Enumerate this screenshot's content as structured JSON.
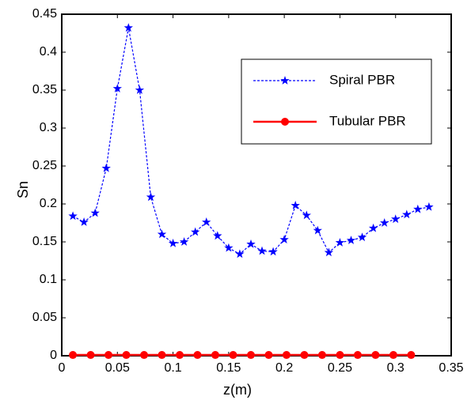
{
  "chart_data": {
    "type": "line",
    "x_label": "z(m)",
    "y_label": "Sn",
    "xlim": [
      0,
      0.35
    ],
    "ylim": [
      0,
      0.45
    ],
    "xticks": [
      0,
      0.05,
      0.1,
      0.15,
      0.2,
      0.25,
      0.3,
      0.35
    ],
    "yticks": [
      0,
      0.05,
      0.1,
      0.15,
      0.2,
      0.25,
      0.3,
      0.35,
      0.4,
      0.45
    ],
    "grid": false,
    "legend": "upper right",
    "series": [
      {
        "name": "Spiral PBR",
        "color": "#0000ff",
        "marker": "star",
        "line_style": "dashed",
        "x": [
          0.01,
          0.02,
          0.03,
          0.04,
          0.05,
          0.06,
          0.07,
          0.08,
          0.09,
          0.1,
          0.11,
          0.12,
          0.13,
          0.14,
          0.15,
          0.16,
          0.17,
          0.18,
          0.19,
          0.2,
          0.21,
          0.22,
          0.23,
          0.24,
          0.25,
          0.26,
          0.27,
          0.28,
          0.29,
          0.3,
          0.31,
          0.32,
          0.33
        ],
        "values": [
          0.184,
          0.176,
          0.188,
          0.247,
          0.352,
          0.432,
          0.35,
          0.209,
          0.16,
          0.148,
          0.15,
          0.163,
          0.176,
          0.158,
          0.142,
          0.134,
          0.147,
          0.138,
          0.137,
          0.153,
          0.198,
          0.185,
          0.165,
          0.136,
          0.149,
          0.152,
          0.156,
          0.168,
          0.175,
          0.18,
          0.186,
          0.193,
          0.196
        ]
      },
      {
        "name": "Tubular PBR",
        "color": "#ff0000",
        "marker": "circle",
        "line_style": "solid",
        "x": [
          0.01,
          0.026,
          0.042,
          0.058,
          0.074,
          0.09,
          0.106,
          0.122,
          0.138,
          0.154,
          0.17,
          0.186,
          0.202,
          0.218,
          0.234,
          0.25,
          0.266,
          0.282,
          0.298,
          0.314
        ],
        "values": [
          0.001,
          0.001,
          0.001,
          0.001,
          0.001,
          0.001,
          0.001,
          0.001,
          0.001,
          0.001,
          0.001,
          0.001,
          0.001,
          0.001,
          0.001,
          0.001,
          0.001,
          0.001,
          0.001,
          0.001
        ]
      }
    ]
  }
}
